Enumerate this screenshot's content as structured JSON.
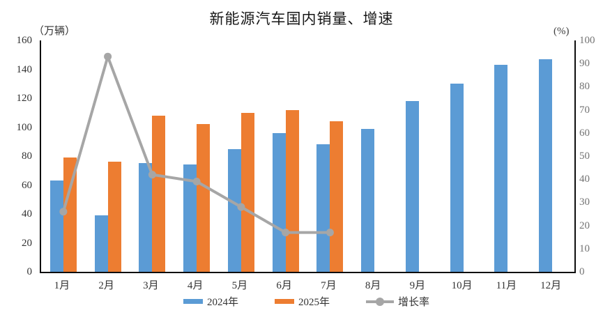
{
  "chart_data": {
    "type": "combo-bar-line",
    "title": "新能源汽车国内销量、增速",
    "categories": [
      "1月",
      "2月",
      "3月",
      "4月",
      "5月",
      "6月",
      "7月",
      "8月",
      "9月",
      "10月",
      "11月",
      "12月"
    ],
    "series": [
      {
        "name": "2024年",
        "type": "bar",
        "axis": "left",
        "color": "#5B9BD5",
        "values": [
          63,
          39,
          75,
          74,
          85,
          96,
          88,
          99,
          118,
          130,
          143,
          147
        ]
      },
      {
        "name": "2025年",
        "type": "bar",
        "axis": "left",
        "color": "#ED7D31",
        "values": [
          79,
          76,
          108,
          102,
          110,
          112,
          104
        ]
      },
      {
        "name": "增长率",
        "type": "line",
        "axis": "right",
        "color": "#A6A6A6",
        "values": [
          26,
          93,
          42,
          39,
          28,
          17,
          17
        ]
      }
    ],
    "left_axis": {
      "unit": "（万辆）",
      "min": 0,
      "max": 160,
      "ticks": [
        0,
        20,
        40,
        60,
        80,
        100,
        120,
        140,
        160
      ]
    },
    "right_axis": {
      "unit": "(%)",
      "min": 0,
      "max": 100,
      "ticks": [
        0,
        10,
        20,
        30,
        40,
        50,
        60,
        70,
        80,
        90,
        100
      ]
    },
    "grid": false,
    "legend_position": "bottom"
  }
}
